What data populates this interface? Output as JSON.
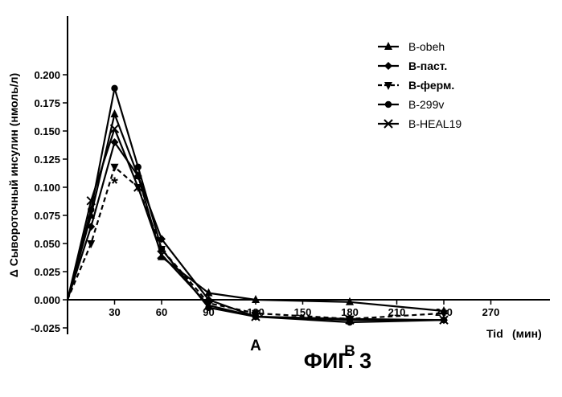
{
  "chart_data": {
    "type": "line",
    "ylabel": "Δ Сывороточный инсулин (нмоль/л)",
    "xlabel": "Tid",
    "x_unit": "(мин)",
    "ylim": [
      -0.025,
      0.2
    ],
    "xlim": [
      0,
      270
    ],
    "y_ticks": [
      "0.200",
      "0.175",
      "0.150",
      "0.125",
      "0.100",
      "0.075",
      "0.050",
      "0.025",
      "0.000",
      "-0.025"
    ],
    "x_ticks": [
      "30",
      "60",
      "90",
      "120",
      "150",
      "180",
      "210",
      "240",
      "270"
    ],
    "x_tick_values": [
      30,
      60,
      90,
      120,
      150,
      180,
      210,
      240,
      270
    ],
    "legend_position": "top-right",
    "series": [
      {
        "name": "B-obeh",
        "marker": "triangle-up",
        "dashed": false,
        "bold_label": false,
        "x": [
          0,
          15,
          30,
          45,
          60,
          90,
          120,
          180,
          240
        ],
        "y": [
          0.0,
          0.075,
          0.165,
          0.11,
          0.038,
          0.006,
          0.0,
          -0.002,
          -0.01
        ]
      },
      {
        "name": "B-паст.",
        "marker": "diamond",
        "dashed": false,
        "bold_label": true,
        "x": [
          0,
          15,
          30,
          45,
          60,
          90,
          120,
          180,
          240
        ],
        "y": [
          0.0,
          0.065,
          0.14,
          0.11,
          0.054,
          0.0,
          -0.015,
          -0.017,
          -0.018
        ]
      },
      {
        "name": "B-ферм.",
        "marker": "triangle-down",
        "dashed": true,
        "bold_label": true,
        "x": [
          0,
          15,
          30,
          45,
          60,
          90,
          120,
          180,
          240
        ],
        "y": [
          0.0,
          0.05,
          0.118,
          0.1,
          0.045,
          -0.003,
          -0.012,
          -0.017,
          -0.012
        ]
      },
      {
        "name": "B-299v",
        "marker": "circle",
        "dashed": false,
        "bold_label": false,
        "x": [
          0,
          15,
          30,
          45,
          60,
          90,
          120,
          180,
          240
        ],
        "y": [
          0.0,
          0.08,
          0.188,
          0.118,
          0.045,
          -0.007,
          -0.015,
          -0.02,
          -0.018
        ]
      },
      {
        "name": "B-HEAL19",
        "marker": "x",
        "dashed": false,
        "bold_label": false,
        "x": [
          0,
          15,
          30,
          45,
          60,
          90,
          120,
          180,
          240
        ],
        "y": [
          0.0,
          0.088,
          0.152,
          0.1,
          0.04,
          -0.005,
          -0.015,
          -0.018,
          -0.018
        ]
      }
    ],
    "annotations": [
      {
        "text": "*",
        "x": 30,
        "y": 0.105
      },
      {
        "text": "A",
        "x": 120,
        "y": -0.035
      },
      {
        "text": "B",
        "x": 180,
        "y": -0.04
      }
    ]
  },
  "figure_caption": "ФИГ. 3"
}
